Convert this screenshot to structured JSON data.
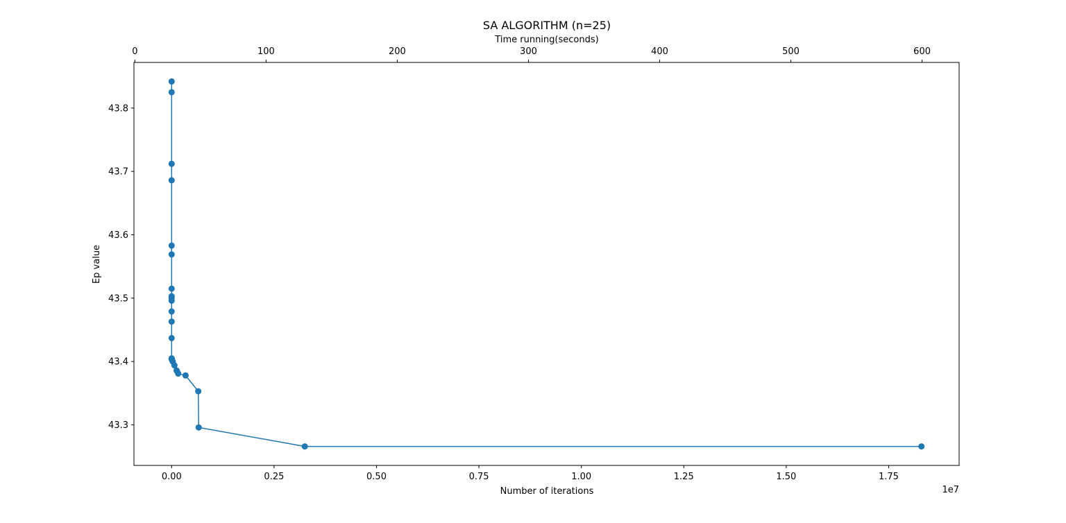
{
  "chart_data": {
    "type": "line",
    "title": "SA ALGORITHM (n=25)",
    "xlabel": "Number of iterations",
    "ylabel": "Ep value",
    "x_offset_label": "1e7",
    "top_xlabel": "Time running(seconds)",
    "xlim": [
      -0.092,
      1.922
    ],
    "ylim": [
      43.236,
      43.872
    ],
    "top_xlim": [
      -0.71,
      628.25
    ],
    "x_ticks": [
      0.0,
      0.25,
      0.5,
      0.75,
      1.0,
      1.25,
      1.5,
      1.75
    ],
    "x_tick_labels": [
      "0.00",
      "0.25",
      "0.50",
      "0.75",
      "1.00",
      "1.25",
      "1.50",
      "1.75"
    ],
    "y_ticks": [
      43.3,
      43.4,
      43.5,
      43.6,
      43.7,
      43.8
    ],
    "y_tick_labels": [
      "43.3",
      "43.4",
      "43.5",
      "43.6",
      "43.7",
      "43.8"
    ],
    "top_ticks": [
      0,
      100,
      200,
      300,
      400,
      500,
      600
    ],
    "top_tick_labels": [
      "0",
      "100",
      "200",
      "300",
      "400",
      "500",
      "600"
    ],
    "grid": false,
    "marker": "circle",
    "color": "#1f77b4",
    "series": [
      {
        "x": [
          0.0,
          0.0,
          0.0,
          0.0,
          0.0,
          0.0,
          0.0,
          0.0,
          0.0,
          0.0,
          0.0,
          0.0,
          0.0,
          0.0,
          0.0,
          0.0005,
          0.0013,
          0.0027,
          0.0068,
          0.012,
          0.013,
          0.016,
          0.034,
          0.065,
          0.066,
          0.325,
          1.83
        ],
        "y": [
          43.842,
          43.825,
          43.712,
          43.686,
          43.583,
          43.569,
          43.515,
          43.503,
          43.5,
          43.496,
          43.479,
          43.463,
          43.437,
          43.405,
          43.404,
          43.404,
          43.402,
          43.4,
          43.394,
          43.386,
          43.385,
          43.381,
          43.378,
          43.353,
          43.296,
          43.266,
          43.266
        ]
      }
    ]
  }
}
